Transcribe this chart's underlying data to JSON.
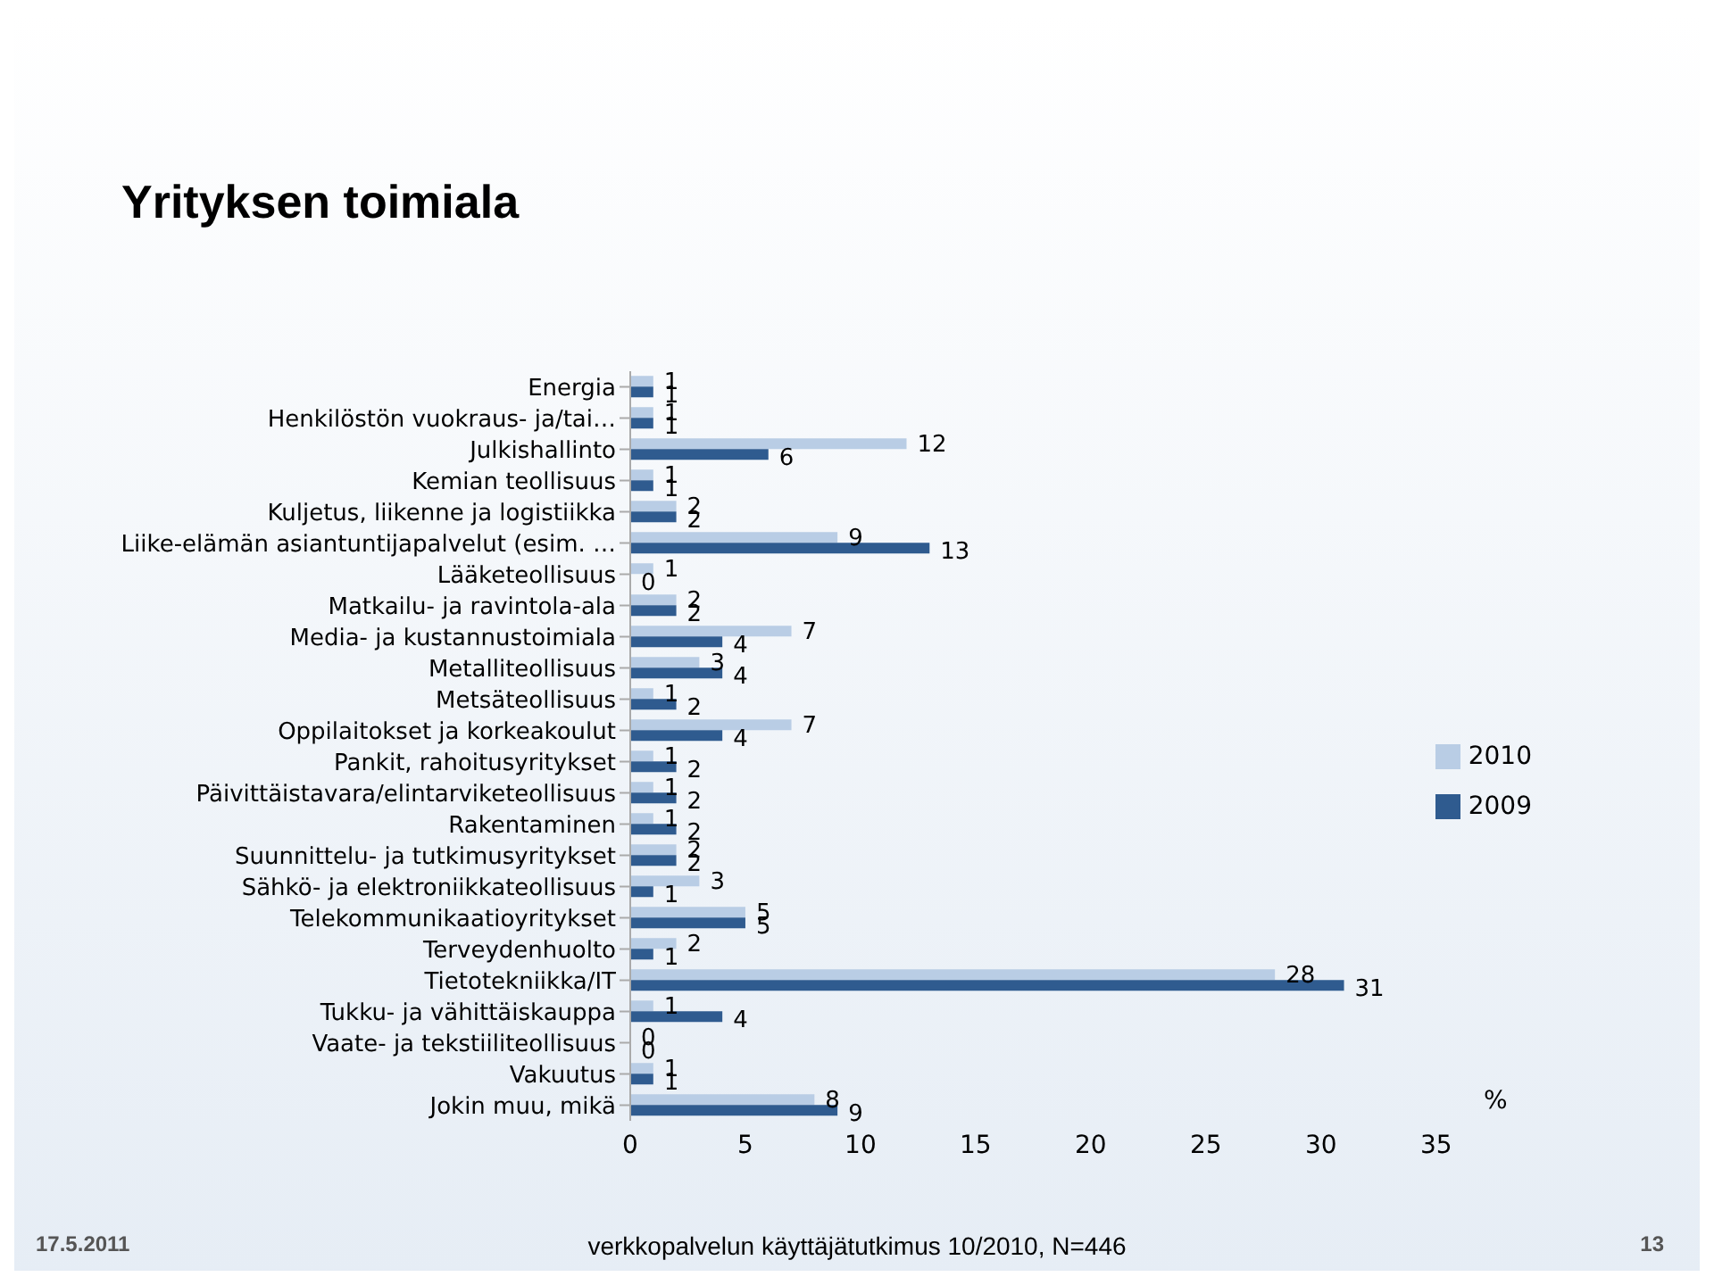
{
  "chart_data": {
    "type": "bar",
    "orientation": "horizontal",
    "title": "Yrityksen toimiala",
    "xlabel": "%",
    "categories": [
      "Energia",
      "Henkilöstön vuokraus- ja/tai…",
      "Julkishallinto",
      "Kemian teollisuus",
      "Kuljetus, liikenne ja logistiikka",
      "Liike-elämän asiantuntijapalvelut (esim. …",
      "Lääketeollisuus",
      "Matkailu- ja ravintola-ala",
      "Media- ja kustannustoimiala",
      "Metalliteollisuus",
      "Metsäteollisuus",
      "Oppilaitokset ja korkeakoulut",
      "Pankit, rahoitusyritykset",
      "Päivittäistavara/elintarviketeollisuus",
      "Rakentaminen",
      "Suunnittelu- ja tutkimusyritykset",
      "Sähkö- ja elektroniikkateollisuus",
      "Telekommunikaatioyritykset",
      "Terveydenhuolto",
      "Tietotekniikka/IT",
      "Tukku- ja vähittäiskauppa",
      "Vaate- ja tekstiiliteollisuus",
      "Vakuutus",
      "Jokin muu, mikä"
    ],
    "series": [
      {
        "name": "2010",
        "color": "#b9cde5",
        "values": [
          1,
          1,
          12,
          1,
          2,
          9,
          1,
          2,
          7,
          3,
          1,
          7,
          1,
          1,
          1,
          2,
          3,
          5,
          2,
          28,
          1,
          0,
          1,
          8
        ]
      },
      {
        "name": "2009",
        "color": "#2f5b8f",
        "values": [
          1,
          1,
          6,
          1,
          2,
          13,
          0,
          2,
          4,
          4,
          2,
          4,
          2,
          2,
          2,
          2,
          1,
          5,
          1,
          31,
          4,
          0,
          1,
          9
        ]
      }
    ],
    "xlim": [
      0,
      35
    ],
    "xticks": [
      0,
      5,
      10,
      15,
      20,
      25,
      30,
      35
    ],
    "grid": false,
    "legend": "right",
    "data_labels": true,
    "annotations": [
      "17.5.2011",
      "verkkopalvelun käyttäjätutkimus 10/2010, N=446",
      "13"
    ]
  }
}
